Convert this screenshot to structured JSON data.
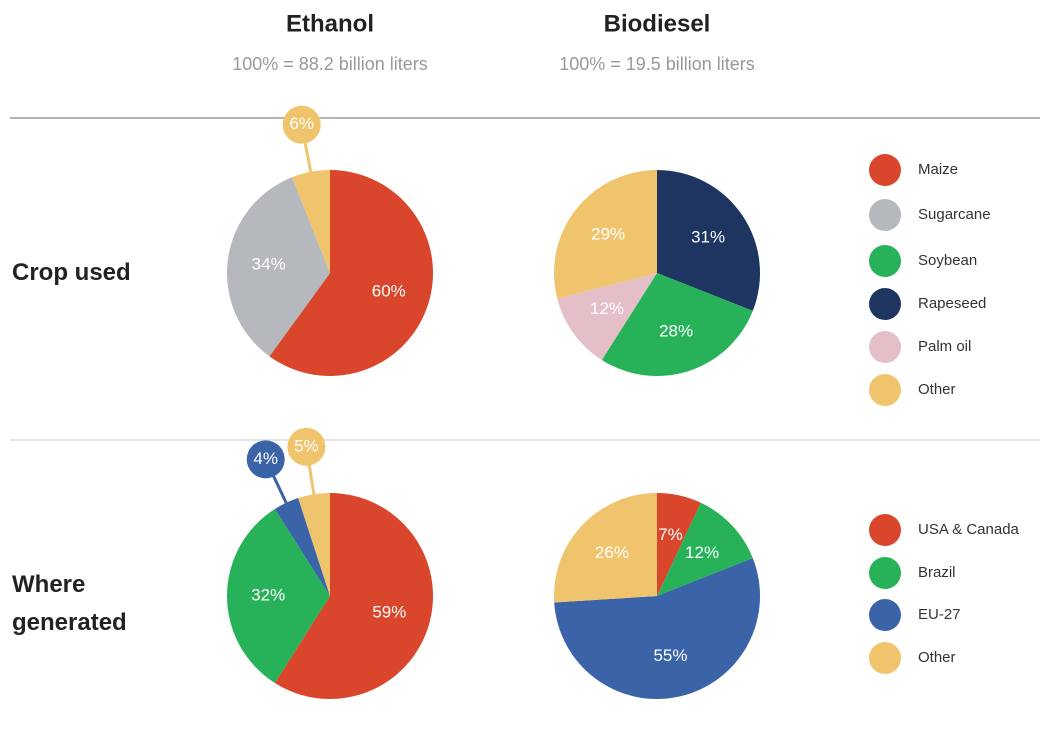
{
  "columns": [
    {
      "title": "Ethanol",
      "subtitle": "100% = 88.2 billion liters"
    },
    {
      "title": "Biodiesel",
      "subtitle": "100% = 19.5 billion liters"
    }
  ],
  "chart_data": [
    {
      "type": "pie",
      "title": "Crop used",
      "legend": [
        {
          "name": "Maize",
          "color": "#d9462b"
        },
        {
          "name": "Sugarcane",
          "color": "#b5b8bd"
        },
        {
          "name": "Soybean",
          "color": "#27b25a"
        },
        {
          "name": "Rapeseed",
          "color": "#1e3461"
        },
        {
          "name": "Palm oil",
          "color": "#e5bfc8"
        },
        {
          "name": "Other",
          "color": "#f0c46c"
        }
      ],
      "pies": [
        {
          "categories": [
            "Maize",
            "Sugarcane",
            "Other"
          ],
          "values": [
            60,
            34,
            6
          ],
          "value_labels": [
            "60%",
            "34%",
            "6%"
          ]
        },
        {
          "categories": [
            "Rapeseed",
            "Soybean",
            "Palm oil",
            "Other"
          ],
          "values": [
            31,
            28,
            12,
            29
          ],
          "value_labels": [
            "31%",
            "28%",
            "12%",
            "29%"
          ]
        }
      ]
    },
    {
      "type": "pie",
      "title": "Where generated",
      "legend": [
        {
          "name": "USA & Canada",
          "color": "#d9462b"
        },
        {
          "name": "Brazil",
          "color": "#27b25a"
        },
        {
          "name": "EU-27",
          "color": "#3b64a8"
        },
        {
          "name": "Other",
          "color": "#f0c46c"
        }
      ],
      "pies": [
        {
          "categories": [
            "USA & Canada",
            "Brazil",
            "EU-27",
            "Other"
          ],
          "values": [
            59,
            32,
            4,
            5
          ],
          "value_labels": [
            "59%",
            "32%",
            "4%",
            "5%"
          ]
        },
        {
          "categories": [
            "USA & Canada",
            "Brazil",
            "EU-27",
            "Other"
          ],
          "values": [
            7,
            12,
            55,
            26
          ],
          "value_labels": [
            "7%",
            "12%",
            "55%",
            "26%"
          ]
        }
      ]
    }
  ]
}
